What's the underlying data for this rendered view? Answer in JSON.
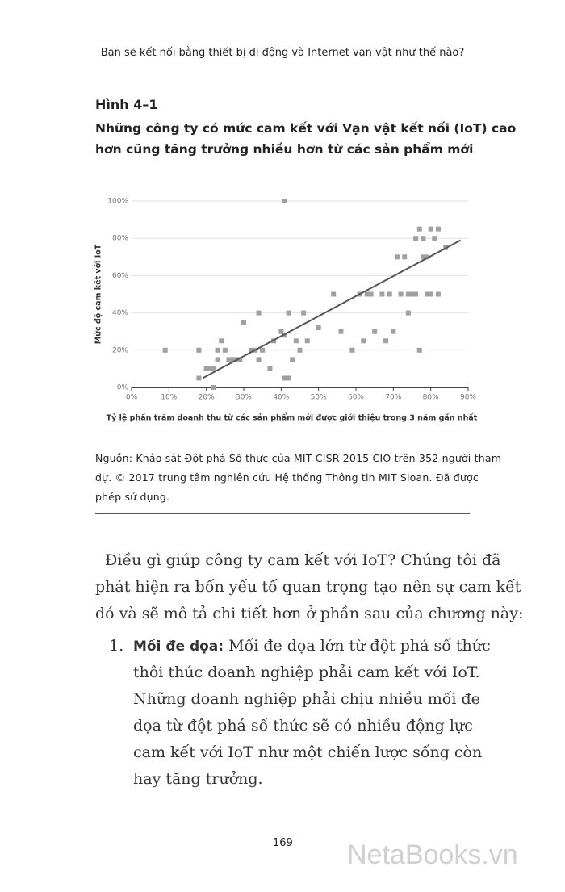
{
  "header": "Bạn sẽ kết nối bằng thiết bị di động và Internet vạn vật như thế nào?",
  "figure_label": "Hình 4–1",
  "figure_title": [
    "Những công ty có mức cam kết với Vạn vật kết nối (IoT) cao",
    "hơn cũng tăng trưởng nhiều hơn từ các sản phẩm mới"
  ],
  "chart_data": {
    "type": "scatter",
    "x_label": "Tỷ lệ phần trăm doanh thu từ các sản phẩm mới được giới thiệu trong 3 năm gần nhất",
    "y_label": "Mức độ cam kết với IoT",
    "xlim": [
      0,
      90
    ],
    "ylim": [
      0,
      100
    ],
    "xticks": [
      {
        "value": 0,
        "label": "0%"
      },
      {
        "value": 10,
        "label": "10%"
      },
      {
        "value": 20,
        "label": "20%"
      },
      {
        "value": 30,
        "label": "30%"
      },
      {
        "value": 40,
        "label": "40%"
      },
      {
        "value": 50,
        "label": "50%"
      },
      {
        "value": 60,
        "label": "60%"
      },
      {
        "value": 70,
        "label": "70%"
      },
      {
        "value": 80,
        "label": "80%"
      },
      {
        "value": 90,
        "label": "90%"
      }
    ],
    "yticks": [
      {
        "value": 0,
        "label": "0%"
      },
      {
        "value": 20,
        "label": "20%"
      },
      {
        "value": 40,
        "label": "40%"
      },
      {
        "value": 60,
        "label": "60%"
      },
      {
        "value": 80,
        "label": "80%"
      },
      {
        "value": 100,
        "label": "100%"
      }
    ],
    "grid": true,
    "color": "#a0a0a0",
    "x": [
      9,
      18,
      18,
      20,
      21,
      22,
      22,
      23,
      23,
      24,
      25,
      26,
      27,
      28,
      29,
      30,
      32,
      33,
      34,
      34,
      35,
      37,
      38,
      40,
      41,
      41,
      42,
      42,
      41,
      43,
      44,
      45,
      46,
      47,
      50,
      54,
      56,
      59,
      61,
      62,
      63,
      64,
      65,
      67,
      68,
      69,
      70,
      71,
      72,
      73,
      74,
      74,
      75,
      76,
      76,
      77,
      77,
      78,
      78,
      79,
      79,
      80,
      80,
      81,
      82,
      82,
      84
    ],
    "values": [
      20,
      20,
      5,
      10,
      10,
      0,
      10,
      15,
      20,
      25,
      20,
      15,
      15,
      15,
      15,
      35,
      20,
      20,
      40,
      15,
      20,
      10,
      25,
      30,
      28,
      5,
      5,
      40,
      100,
      15,
      25,
      20,
      40,
      25,
      32,
      50,
      30,
      20,
      50,
      25,
      50,
      50,
      30,
      50,
      25,
      50,
      30,
      70,
      50,
      70,
      50,
      40,
      50,
      80,
      50,
      20,
      85,
      70,
      80,
      50,
      70,
      85,
      50,
      80,
      85,
      50,
      75
    ],
    "trendline": {
      "x": [
        19,
        88
      ],
      "values": [
        5,
        79
      ],
      "color": "#555555"
    }
  },
  "source": [
    "Nguồn: Khảo sát Đột phá Số thực của MIT CISR 2015 CIO trên 352 người tham",
    "dự. © 2017 trung tâm nghiên cứu Hệ thống Thông tin MIT Sloan. Đã được",
    "phép sử dụng."
  ],
  "body": [
    "Điều gì giúp công ty cam kết với IoT? Chúng tôi đã",
    "phát hiện ra bốn yếu tố quan trọng tạo nên sự cam kết",
    "đó và sẽ mô tả chi tiết hơn ở phần sau của chương này:"
  ],
  "list": [
    {
      "number": "1.",
      "term": "Mối đe dọa:",
      "lines": [
        " Mối đe dọa lớn từ đột phá số thức",
        "thôi thúc doanh nghiệp phải cam kết với IoT.",
        "Những doanh nghiệp phải chịu nhiều mối đe",
        "dọa từ đột phá số thức sẽ có nhiều động lực",
        "cam kết với IoT như một chiến lược sống còn",
        "hay tăng trưởng."
      ]
    }
  ],
  "page_number": "169",
  "watermark": "NetaBooks.vn"
}
